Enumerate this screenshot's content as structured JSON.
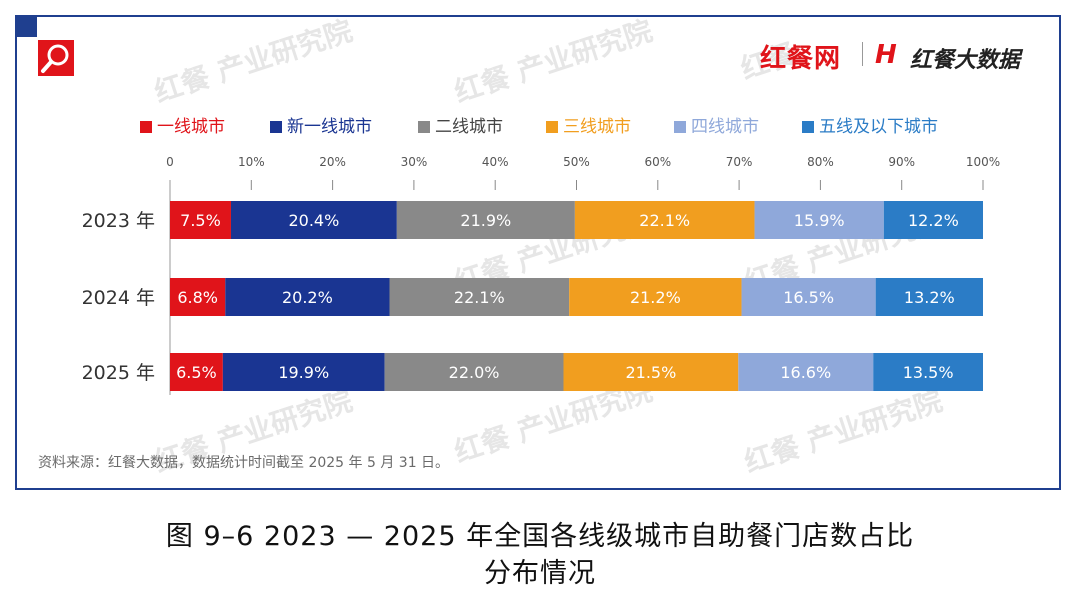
{
  "branding": {
    "left_logo_text": "红餐网",
    "right_logo_icon": "H",
    "right_logo_text": "红餐大数据",
    "search_icon": "magnifier-icon"
  },
  "source_note": "资料来源：红餐大数据，数据统计时间截至 2025 年 5 月 31 日。",
  "caption": {
    "line1": "图 9–6    2023 — 2025 年全国各线级城市自助餐门店数占比",
    "line2": "分布情况"
  },
  "chart_data": {
    "type": "bar",
    "orientation": "horizontal",
    "stacked": true,
    "categories": [
      "2023 年",
      "2024 年",
      "2025 年"
    ],
    "xlim": [
      0,
      100
    ],
    "xticks": [
      0,
      10,
      20,
      30,
      40,
      50,
      60,
      70,
      80,
      90,
      100
    ],
    "xtick_labels": [
      "0",
      "10%",
      "20%",
      "30%",
      "40%",
      "50%",
      "60%",
      "70%",
      "80%",
      "90%",
      "100%"
    ],
    "legend_position": "top",
    "series": [
      {
        "name": "一线城市",
        "color": "#e0141a",
        "values": [
          7.5,
          6.8,
          6.5
        ],
        "labels": [
          "7.5%",
          "6.8%",
          "6.5%"
        ]
      },
      {
        "name": "新一线城市",
        "color": "#1a3592",
        "values": [
          20.4,
          20.2,
          19.9
        ],
        "labels": [
          "20.4%",
          "20.2%",
          "19.9%"
        ]
      },
      {
        "name": "二线城市",
        "color": "#898989",
        "values": [
          21.9,
          22.1,
          22.0
        ],
        "labels": [
          "21.9%",
          "22.1%",
          "22.0%"
        ]
      },
      {
        "name": "三线城市",
        "color": "#f19e1f",
        "values": [
          22.1,
          21.2,
          21.5
        ],
        "labels": [
          "22.1%",
          "21.2%",
          "21.5%"
        ]
      },
      {
        "name": "四线城市",
        "color": "#8fa8da",
        "values": [
          15.9,
          16.5,
          16.6
        ],
        "labels": [
          "15.9%",
          "16.5%",
          "16.6%"
        ]
      },
      {
        "name": "五线及以下城市",
        "color": "#2b7cc6",
        "values": [
          12.2,
          13.2,
          13.5
        ],
        "labels": [
          "12.2%",
          "13.2%",
          "13.5%"
        ]
      }
    ]
  }
}
